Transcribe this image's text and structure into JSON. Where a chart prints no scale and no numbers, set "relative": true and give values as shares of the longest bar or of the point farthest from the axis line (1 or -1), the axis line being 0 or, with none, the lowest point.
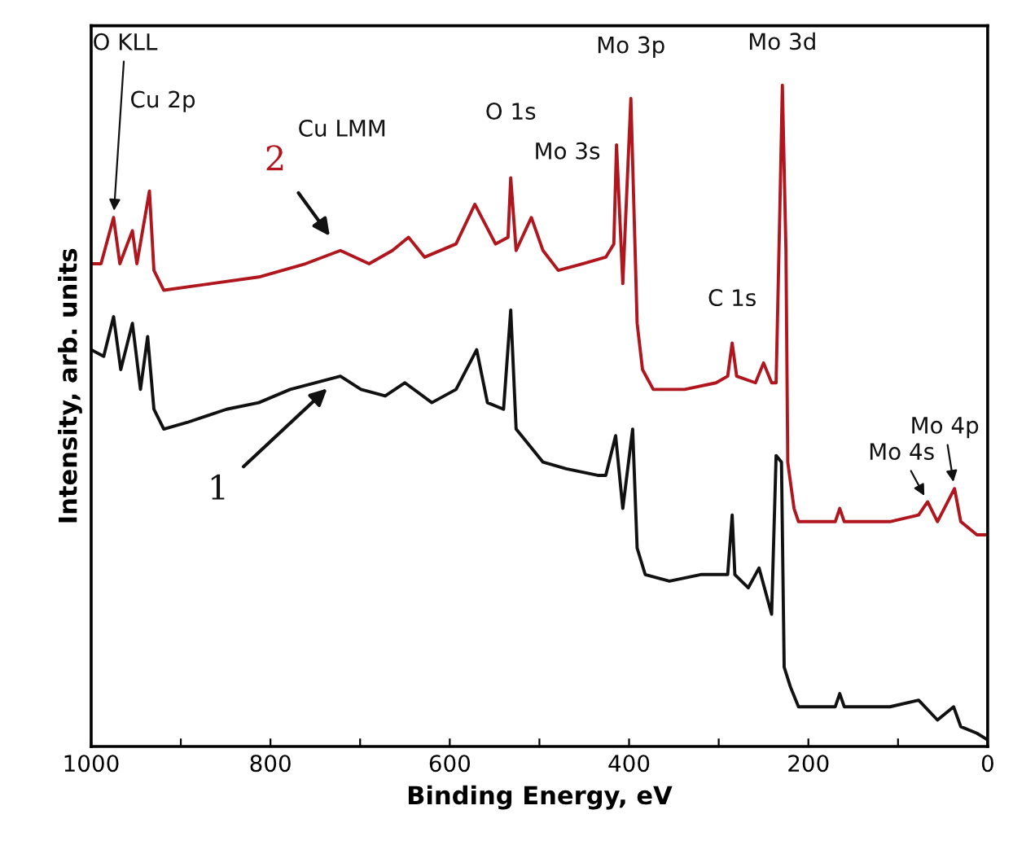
{
  "chart_data": {
    "type": "line",
    "relative": true,
    "xlabel": "Binding Energy, eV",
    "ylabel": "Intensity, arb. units",
    "xlim": [
      1000,
      0
    ],
    "xticks": [
      1000,
      {
        "value": 900,
        "label": null
      },
      800,
      {
        "value": 700,
        "label": null
      },
      600,
      {
        "value": 500,
        "label": null
      },
      400,
      {
        "value": 300,
        "label": null
      },
      200,
      {
        "value": 100,
        "label": null
      },
      0
    ],
    "grid": false,
    "legend": false,
    "marker": "none",
    "line_style": "solid",
    "series": [
      {
        "name": "1",
        "color": "#111111",
        "x": [
          1000,
          986,
          975,
          967,
          954,
          945,
          937,
          930,
          919,
          893,
          849,
          813,
          778,
          722,
          699,
          672,
          650,
          620,
          593,
          570,
          558,
          540,
          532,
          526,
          514,
          496,
          470,
          435,
          426,
          415,
          407,
          396,
          391,
          382,
          355,
          320,
          290,
          285,
          282,
          267,
          255,
          241,
          236,
          230,
          227,
          220,
          211,
          170,
          165,
          160,
          109,
          77,
          56,
          38,
          30,
          12,
          0
        ],
        "values": [
          0.6,
          0.59,
          0.65,
          0.57,
          0.64,
          0.54,
          0.62,
          0.51,
          0.48,
          0.49,
          0.51,
          0.52,
          0.54,
          0.56,
          0.54,
          0.53,
          0.55,
          0.52,
          0.54,
          0.6,
          0.52,
          0.51,
          0.66,
          0.48,
          0.46,
          0.43,
          0.42,
          0.41,
          0.41,
          0.47,
          0.36,
          0.48,
          0.3,
          0.26,
          0.25,
          0.26,
          0.26,
          0.35,
          0.26,
          0.24,
          0.27,
          0.2,
          0.44,
          0.43,
          0.12,
          0.09,
          0.06,
          0.06,
          0.08,
          0.06,
          0.06,
          0.07,
          0.04,
          0.06,
          0.03,
          0.02,
          0.01
        ]
      },
      {
        "name": "2",
        "color": "#b0161e",
        "x": [
          1000,
          989,
          975,
          968,
          954,
          949,
          935,
          930,
          919,
          866,
          813,
          761,
          722,
          690,
          664,
          646,
          628,
          593,
          572,
          549,
          535,
          532,
          526,
          509,
          496,
          479,
          452,
          426,
          417,
          414,
          407,
          398,
          391,
          385,
          373,
          338,
          303,
          290,
          285,
          280,
          259,
          250,
          241,
          236,
          232,
          229,
          225,
          223,
          216,
          211,
          170,
          165,
          160,
          109,
          77,
          67,
          56,
          37,
          30,
          12,
          0
        ],
        "values": [
          0.73,
          0.73,
          0.8,
          0.73,
          0.78,
          0.73,
          0.84,
          0.72,
          0.69,
          0.7,
          0.71,
          0.73,
          0.75,
          0.73,
          0.75,
          0.77,
          0.74,
          0.76,
          0.82,
          0.76,
          0.77,
          0.86,
          0.75,
          0.8,
          0.75,
          0.72,
          0.73,
          0.74,
          0.76,
          0.91,
          0.7,
          0.98,
          0.64,
          0.57,
          0.54,
          0.54,
          0.55,
          0.56,
          0.61,
          0.56,
          0.55,
          0.58,
          0.55,
          0.55,
          0.8,
          1.0,
          0.75,
          0.43,
          0.36,
          0.34,
          0.34,
          0.36,
          0.34,
          0.34,
          0.35,
          0.37,
          0.34,
          0.39,
          0.34,
          0.32,
          0.32
        ]
      }
    ],
    "annotations": [
      {
        "text": "O KLL",
        "x": 975,
        "y": 0.8
      },
      "Cu 2p",
      "Cu LMM",
      {
        "text": "O 1s",
        "x": 532,
        "y": 0.86
      },
      {
        "text": "Mo 3s",
        "x": 509,
        "y": 0.8
      },
      {
        "text": "Mo 3p",
        "x": 398,
        "y": 0.98
      },
      {
        "text": "Mo 3d",
        "x": 229,
        "y": 1.0
      },
      {
        "text": "C 1s",
        "x": 285,
        "y": 0.61
      },
      {
        "text": "Mo 4s",
        "x": 67,
        "y": 0.37
      },
      {
        "text": "Mo 4p",
        "x": 37,
        "y": 0.39
      }
    ]
  }
}
